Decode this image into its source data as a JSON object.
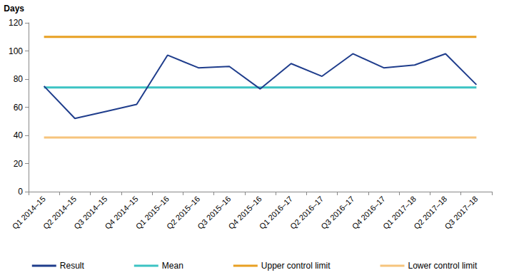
{
  "chart_data": {
    "type": "line",
    "ylabel": "Days",
    "categories": [
      "Q1 2014–15",
      "Q2 2014–15",
      "Q3 2014–15",
      "Q4 2014–15",
      "Q1 2015–16",
      "Q2 2015–16",
      "Q3 2015–16",
      "Q4 2015–16",
      "Q1 2016–17",
      "Q2 2016–17",
      "Q3 2016–17",
      "Q4 2016–17",
      "Q1 2017–18",
      "Q2 2017–18",
      "Q3 2017–18"
    ],
    "series": [
      {
        "name": "Result",
        "color": "#1f3d8c",
        "values": [
          75,
          52,
          57,
          62,
          97,
          88,
          89,
          73,
          91,
          82,
          98,
          88,
          90,
          98,
          76
        ]
      },
      {
        "name": "Mean",
        "color": "#3cc3c3",
        "values": [
          74,
          74,
          74,
          74,
          74,
          74,
          74,
          74,
          74,
          74,
          74,
          74,
          74,
          74,
          74
        ]
      },
      {
        "name": "Upper control limit",
        "color": "#e8a023",
        "values": [
          110,
          110,
          110,
          110,
          110,
          110,
          110,
          110,
          110,
          110,
          110,
          110,
          110,
          110,
          110
        ]
      },
      {
        "name": "Lower control limit",
        "color": "#f6c47c",
        "values": [
          38.5,
          38.5,
          38.5,
          38.5,
          38.5,
          38.5,
          38.5,
          38.5,
          38.5,
          38.5,
          38.5,
          38.5,
          38.5,
          38.5,
          38.5
        ]
      }
    ],
    "ylim": [
      0,
      120
    ],
    "yticks": [
      0,
      20,
      40,
      60,
      80,
      100,
      120
    ],
    "grid": false,
    "legend": "bottom"
  }
}
